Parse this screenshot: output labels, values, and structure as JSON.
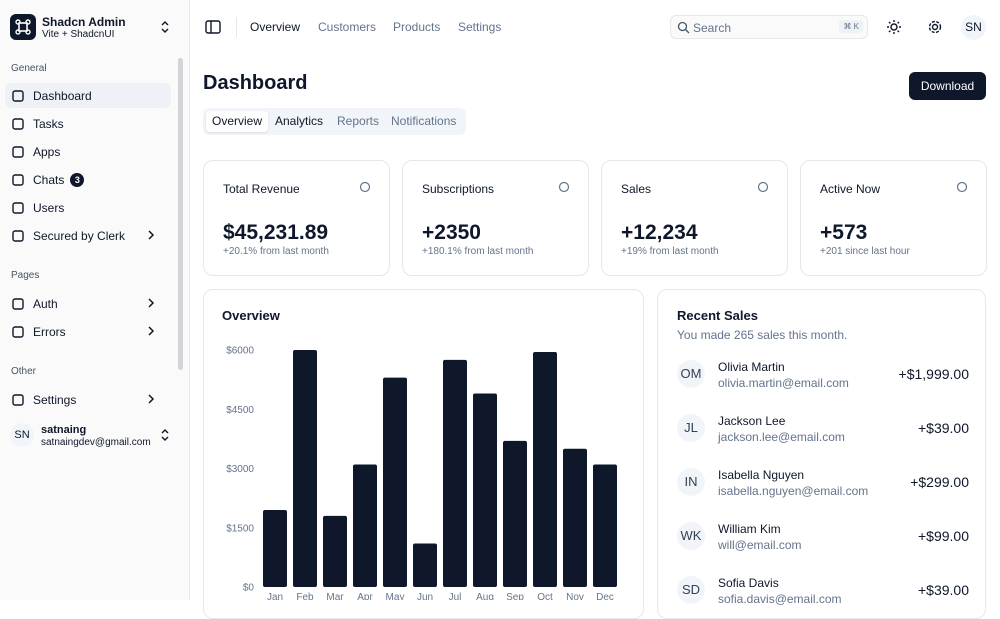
{
  "sidebar": {
    "brand": {
      "title": "Shadcn Admin",
      "subtitle": "Vite + ShadcnUI"
    },
    "groups": [
      {
        "label": "General",
        "items": [
          {
            "label": "Dashboard"
          },
          {
            "label": "Tasks"
          },
          {
            "label": "Apps"
          },
          {
            "label": "Chats",
            "badge": 3
          },
          {
            "label": "Users"
          },
          {
            "label": "Secured by Clerk"
          }
        ]
      },
      {
        "label": "Pages",
        "items": [
          {
            "label": "Auth"
          },
          {
            "label": "Errors"
          }
        ]
      },
      {
        "label": "Other",
        "items": [
          {
            "label": "Settings"
          }
        ]
      }
    ],
    "user": {
      "initials": "SN",
      "name": "satnaing",
      "email": "satnaingdev@gmail.com"
    }
  },
  "header": {
    "nav": [
      "Overview",
      "Customers",
      "Products",
      "Settings"
    ],
    "search": {
      "placeholder": "Search",
      "shortcut": "⌘ K"
    },
    "avatar": "SN"
  },
  "page": {
    "title": "Dashboard",
    "download": "Download",
    "tabs": [
      "Overview",
      "Analytics",
      "Reports",
      "Notifications"
    ]
  },
  "cards": [
    {
      "title": "Total Revenue",
      "value": "$45,231.89",
      "note": "+20.1% from last month"
    },
    {
      "title": "Subscriptions",
      "value": "+2350",
      "note": "+180.1% from last month"
    },
    {
      "title": "Sales",
      "value": "+12,234",
      "note": "+19% from last month"
    },
    {
      "title": "Active Now",
      "value": "+573",
      "note": "+201 since last hour"
    }
  ],
  "recent_sales": {
    "title": "Recent Sales",
    "subtitle": "You made 265 sales this month.",
    "items": [
      {
        "initials": "OM",
        "name": "Olivia Martin",
        "email": "olivia.martin@email.com",
        "amount": "+$1,999.00"
      },
      {
        "initials": "JL",
        "name": "Jackson Lee",
        "email": "jackson.lee@email.com",
        "amount": "+$39.00"
      },
      {
        "initials": "IN",
        "name": "Isabella Nguyen",
        "email": "isabella.nguyen@email.com",
        "amount": "+$299.00"
      },
      {
        "initials": "WK",
        "name": "William Kim",
        "email": "will@email.com",
        "amount": "+$99.00"
      },
      {
        "initials": "SD",
        "name": "Sofia Davis",
        "email": "sofia.davis@email.com",
        "amount": "+$39.00"
      }
    ]
  },
  "chart_data": {
    "type": "bar",
    "title": "Overview",
    "categories": [
      "Jan",
      "Feb",
      "Mar",
      "Apr",
      "May",
      "Jun",
      "Jul",
      "Aug",
      "Sep",
      "Oct",
      "Nov",
      "Dec"
    ],
    "values": [
      1950,
      6000,
      1800,
      3100,
      5300,
      1100,
      5750,
      4900,
      3700,
      5950,
      3500,
      3100
    ],
    "color": "#0f172a",
    "ylim": [
      0,
      6000
    ],
    "yticks": [
      {
        "value": 0,
        "label": "$0"
      },
      {
        "value": 1500,
        "label": "$1500"
      },
      {
        "value": 3000,
        "label": "$3000"
      },
      {
        "value": 4500,
        "label": "$4500"
      },
      {
        "value": 6000,
        "label": "$6000"
      }
    ]
  }
}
